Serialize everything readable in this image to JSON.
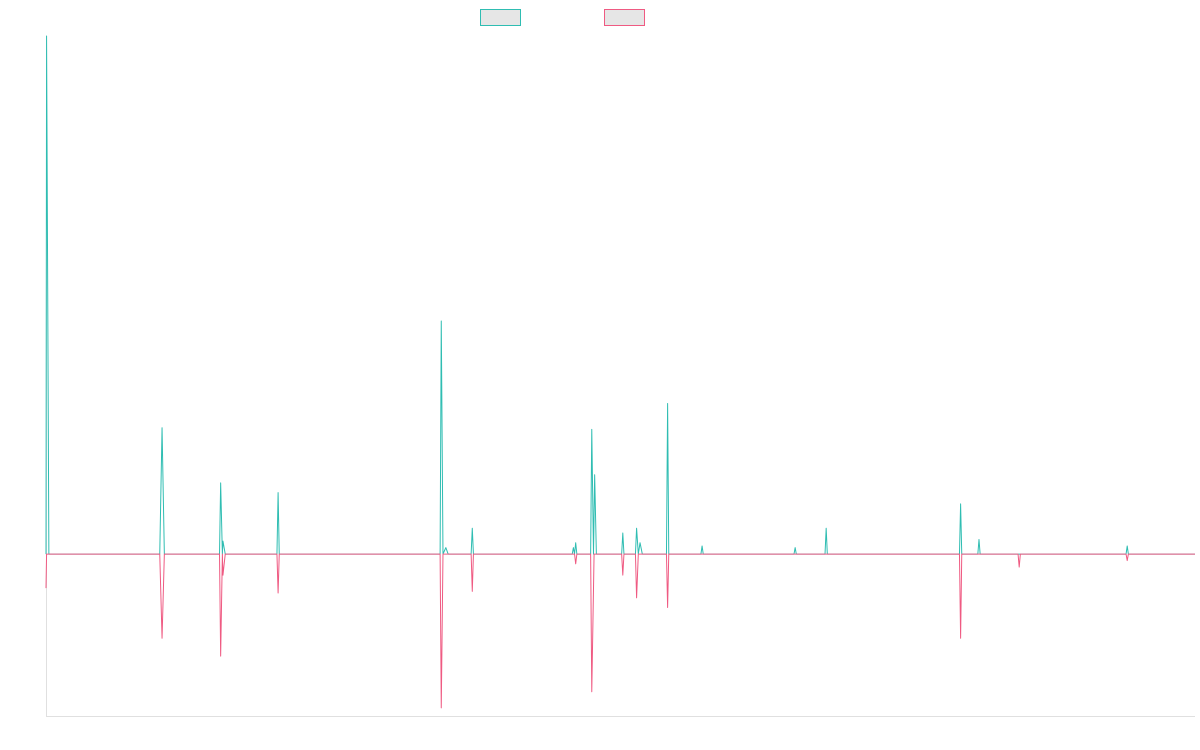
{
  "colors": {
    "series_a": "#2fbdb2",
    "series_b": "#ef5a82",
    "legend_fill": "#e6e6e6",
    "axis": "#e0e0e0"
  },
  "chart_data": {
    "type": "line",
    "title": "",
    "xlabel": "",
    "ylabel": "",
    "grid": false,
    "legend_position": "top-center",
    "xlim": [
      0,
      1000
    ],
    "ylim": [
      -1,
      3.2
    ],
    "series": [
      {
        "values": [
          [
            0,
            0
          ],
          [
            0.5,
            3.2
          ],
          [
            2.5,
            0
          ],
          [
            99,
            0
          ],
          [
            101,
            0.78
          ],
          [
            103,
            0
          ],
          [
            151,
            0
          ],
          [
            152,
            0.44
          ],
          [
            153.5,
            0
          ],
          [
            154,
            0.08
          ],
          [
            156,
            0
          ],
          [
            201,
            0
          ],
          [
            202,
            0.38
          ],
          [
            203,
            0
          ],
          [
            322,
            0
          ],
          [
            343,
            0
          ],
          [
            344,
            1.44
          ],
          [
            345.5,
            0
          ],
          [
            348,
            0.04
          ],
          [
            350,
            0
          ],
          [
            370,
            0
          ],
          [
            371,
            0.16
          ],
          [
            372,
            0
          ],
          [
            458,
            0
          ],
          [
            459,
            0.04
          ],
          [
            460,
            0
          ],
          [
            461,
            0.07
          ],
          [
            462,
            0
          ],
          [
            474,
            0
          ],
          [
            475,
            0.77
          ],
          [
            476.5,
            0
          ],
          [
            477.5,
            0.49
          ],
          [
            479,
            0
          ],
          [
            501,
            0
          ],
          [
            502,
            0.13
          ],
          [
            503,
            0
          ],
          [
            513,
            0
          ],
          [
            514,
            0.16
          ],
          [
            515.5,
            0
          ],
          [
            517,
            0.07
          ],
          [
            519,
            0
          ],
          [
            540,
            0
          ],
          [
            541,
            0.93
          ],
          [
            542,
            0
          ],
          [
            570,
            0
          ],
          [
            571,
            0.05
          ],
          [
            572,
            0
          ],
          [
            651,
            0
          ],
          [
            652,
            0.04
          ],
          [
            653,
            0
          ],
          [
            678,
            0
          ],
          [
            679,
            0.16
          ],
          [
            680,
            0
          ],
          [
            795,
            0
          ],
          [
            796,
            0.31
          ],
          [
            797,
            0
          ],
          [
            811,
            0
          ],
          [
            812,
            0.09
          ],
          [
            813,
            0
          ],
          [
            940,
            0
          ],
          [
            941,
            0.05
          ],
          [
            942,
            0
          ],
          [
            1000,
            0
          ]
        ]
      },
      {
        "values": [
          [
            0,
            -0.21
          ],
          [
            0.5,
            0
          ],
          [
            2.5,
            0
          ],
          [
            99,
            0
          ],
          [
            101,
            -0.52
          ],
          [
            103,
            0
          ],
          [
            151,
            0
          ],
          [
            152,
            -0.63
          ],
          [
            153.5,
            0
          ],
          [
            154,
            -0.13
          ],
          [
            156,
            0
          ],
          [
            201,
            0
          ],
          [
            202,
            -0.24
          ],
          [
            203,
            0
          ],
          [
            343,
            0
          ],
          [
            344,
            -0.95
          ],
          [
            345.5,
            0
          ],
          [
            370,
            0
          ],
          [
            371,
            -0.23
          ],
          [
            372,
            0
          ],
          [
            459,
            0
          ],
          [
            460,
            0
          ],
          [
            461,
            -0.06
          ],
          [
            462,
            0
          ],
          [
            474,
            0
          ],
          [
            475,
            -0.85
          ],
          [
            477,
            0
          ],
          [
            501,
            0
          ],
          [
            502,
            -0.13
          ],
          [
            503,
            0
          ],
          [
            513,
            0
          ],
          [
            514,
            -0.27
          ],
          [
            515.5,
            0
          ],
          [
            540,
            0
          ],
          [
            541,
            -0.33
          ],
          [
            542,
            0
          ],
          [
            795,
            0
          ],
          [
            796,
            -0.52
          ],
          [
            797,
            0
          ],
          [
            846,
            0
          ],
          [
            847,
            -0.08
          ],
          [
            848,
            0
          ],
          [
            940,
            0
          ],
          [
            941,
            -0.04
          ],
          [
            942,
            0
          ],
          [
            1000,
            0
          ]
        ]
      }
    ]
  }
}
